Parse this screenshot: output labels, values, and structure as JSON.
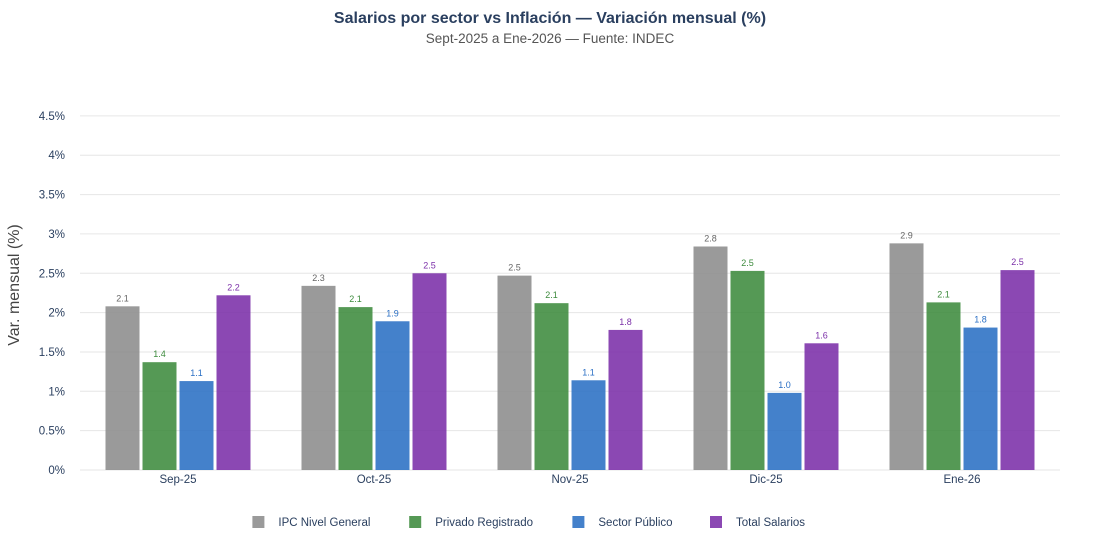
{
  "chart_data": {
    "type": "bar",
    "title": "Salarios por sector vs Inflación — Variación mensual (%)",
    "subtitle": "Sept-2025 a Ene-2026 — Fuente: INDEC",
    "xlabel": "",
    "ylabel": "Var. mensual (%)",
    "ylim": [
      0,
      4.6
    ],
    "yticks": [
      0,
      0.5,
      1,
      1.5,
      2,
      2.5,
      3,
      3.5,
      4,
      4.5
    ],
    "ytick_labels": [
      "0%",
      "0.5%",
      "1%",
      "1.5%",
      "2%",
      "2.5%",
      "3%",
      "3.5%",
      "4%",
      "4.5%"
    ],
    "categories": [
      "Sep-25",
      "Oct-25",
      "Nov-25",
      "Dic-25",
      "Ene-26"
    ],
    "grid": true,
    "legend_position": "bottom-center",
    "series": [
      {
        "name": "IPC Nivel General",
        "color": "#8c8c8c",
        "label_color": "#666666",
        "values": [
          2.08,
          2.34,
          2.47,
          2.84,
          2.88
        ],
        "labels": [
          "2.1",
          "2.3",
          "2.5",
          "2.8",
          "2.9"
        ]
      },
      {
        "name": "Privado Registrado",
        "color": "#3d8b3d",
        "label_color": "#3d8b3d",
        "values": [
          1.37,
          2.07,
          2.12,
          2.53,
          2.13
        ],
        "labels": [
          "1.4",
          "2.1",
          "2.1",
          "2.5",
          "2.1"
        ]
      },
      {
        "name": "Sector Público",
        "color": "#2a6fc4",
        "label_color": "#2a6fc4",
        "values": [
          1.13,
          1.89,
          1.14,
          0.98,
          1.81
        ],
        "labels": [
          "1.1",
          "1.9",
          "1.1",
          "1.0",
          "1.8"
        ]
      },
      {
        "name": "Total Salarios",
        "color": "#7b2fa8",
        "label_color": "#7b2fa8",
        "values": [
          2.22,
          2.5,
          1.78,
          1.61,
          2.54
        ],
        "labels": [
          "2.2",
          "2.5",
          "1.8",
          "1.6",
          "2.5"
        ]
      }
    ]
  }
}
